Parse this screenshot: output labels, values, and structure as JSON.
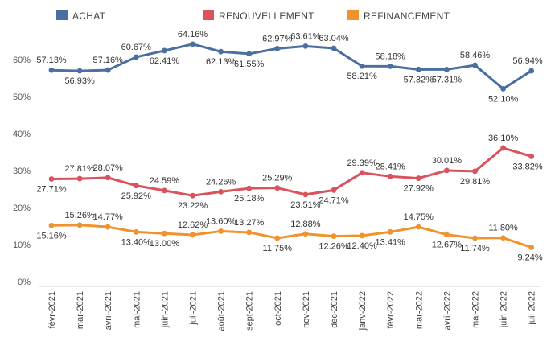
{
  "chart_data": {
    "type": "line",
    "categories": [
      "févr-2021",
      "mar-2021",
      "avril-2021",
      "mai-2021",
      "juin-2021",
      "juil-2021",
      "août-2021",
      "sept-2021",
      "oct-2021",
      "nov-2021",
      "déc-2021",
      "janv-2022",
      "févr-2022",
      "mar-2022",
      "avril-2022",
      "mai-2022",
      "juin-2022",
      "juil-2022"
    ],
    "y_ticks": [
      "0%",
      "10%",
      "20%",
      "30%",
      "40%",
      "50%",
      "60%"
    ],
    "ylim": [
      0,
      68
    ],
    "grid": false,
    "legend_position": "top",
    "series": [
      {
        "name": "ACHAT",
        "color": "#4a6fa0",
        "values": [
          57.13,
          56.93,
          57.16,
          60.67,
          62.41,
          64.16,
          62.13,
          61.55,
          62.97,
          63.61,
          63.04,
          58.21,
          58.18,
          57.32,
          57.31,
          58.46,
          52.1,
          56.94
        ],
        "labels": [
          "57.13%",
          "56.93%",
          "57.16%",
          "60.67%",
          "62.41%",
          "64.16%",
          "62.13%",
          "61.55%",
          "62.97%",
          "63.61%",
          "63.04%",
          "58.21%",
          "58.18%",
          "57.32%",
          "57.31%",
          "58.46%",
          "52.10%",
          "56.94%"
        ]
      },
      {
        "name": "RENOUVELLEMENT",
        "color": "#d9525c",
        "values": [
          27.71,
          27.81,
          28.07,
          25.92,
          24.59,
          23.22,
          24.26,
          25.18,
          25.29,
          23.51,
          24.71,
          29.39,
          28.41,
          27.92,
          30.01,
          29.81,
          36.1,
          33.82
        ],
        "labels": [
          "27.71%",
          "27.81%",
          "28.07%",
          "25.92%",
          "24.59%",
          "23.22%",
          "24.26%",
          "25.18%",
          "25.29%",
          "23.51%",
          "24.71%",
          "29.39%",
          "28.41%",
          "27.92%",
          "30.01%",
          "29.81%",
          "36.10%",
          "33.82%"
        ]
      },
      {
        "name": "REFINANCEMENT",
        "color": "#f0922e",
        "values": [
          15.16,
          15.26,
          14.77,
          13.4,
          13.0,
          12.62,
          13.6,
          13.27,
          11.75,
          12.88,
          12.26,
          12.4,
          13.41,
          14.75,
          12.67,
          11.74,
          11.8,
          9.24
        ],
        "labels": [
          "15.16%",
          "15.26%",
          "14.77%",
          "13.40%",
          "13.00%",
          "12.62%",
          "13.60%",
          "13.27%",
          "11.75%",
          "12.88%",
          "12.26%",
          "12.40%",
          "13.41%",
          "14.75%",
          "12.67%",
          "11.74%",
          "11.80%",
          "9.24%"
        ]
      }
    ]
  }
}
